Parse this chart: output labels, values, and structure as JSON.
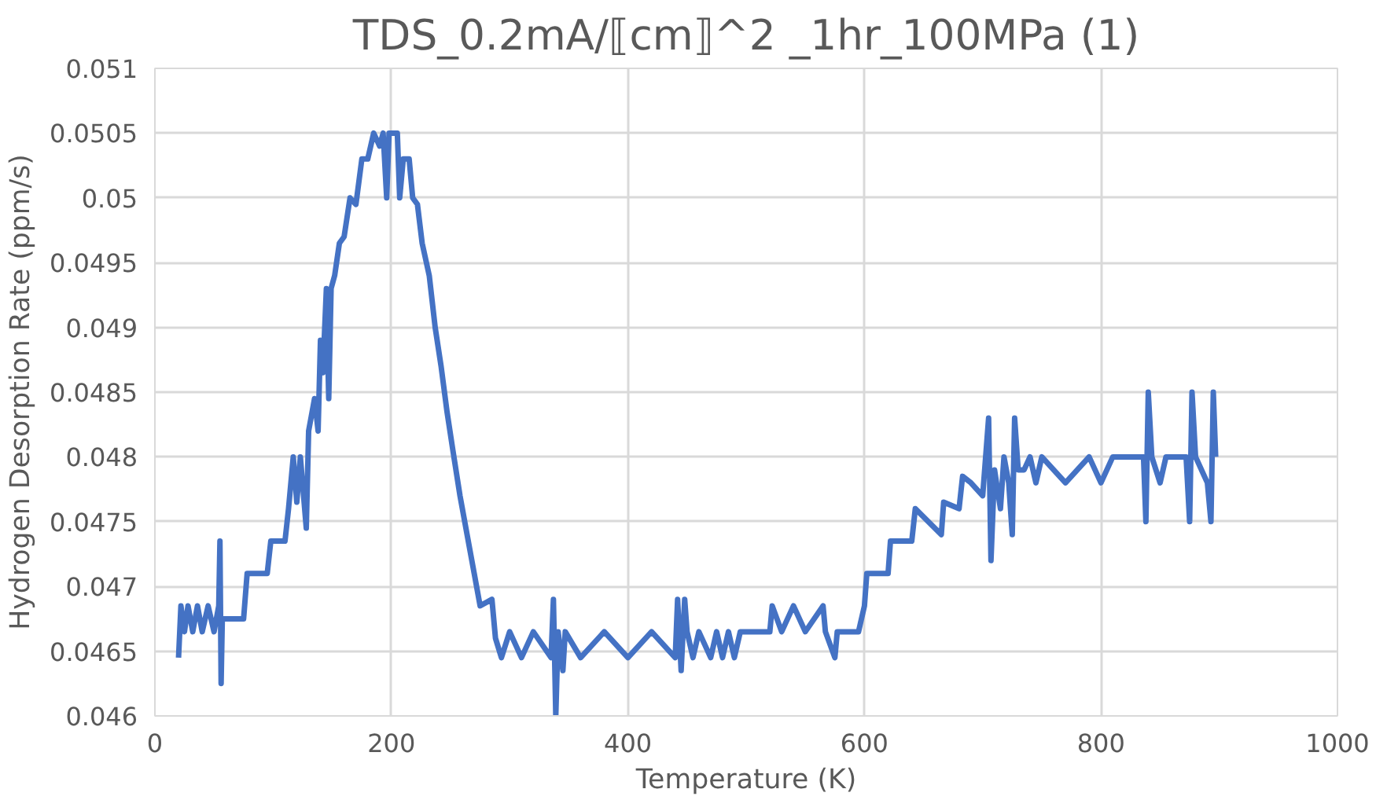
{
  "chart_data": {
    "type": "line",
    "title": "TDS_0.2mA/⟦cm⟧^2 _1hr_100MPa (1)",
    "xlabel": "Temperature (K)",
    "ylabel": "Hydrogen Desorption Rate (ppm/s)",
    "x": [
      20,
      22,
      25,
      28,
      32,
      36,
      40,
      45,
      50,
      54,
      55,
      56,
      57,
      75,
      78,
      95,
      98,
      110,
      113,
      117,
      120,
      123,
      128,
      130,
      135,
      138,
      140,
      142,
      145,
      147,
      149,
      152,
      156,
      160,
      165,
      170,
      175,
      180,
      185,
      190,
      193,
      196,
      198,
      205,
      207,
      210,
      215,
      218,
      222,
      226,
      232,
      237,
      242,
      247,
      252,
      258,
      264,
      270,
      275,
      285,
      288,
      293,
      300,
      310,
      320,
      335,
      337,
      339,
      341,
      345,
      347,
      360,
      380,
      400,
      420,
      440,
      442,
      445,
      448,
      450,
      455,
      460,
      470,
      475,
      480,
      485,
      490,
      495,
      520,
      522,
      530,
      540,
      550,
      565,
      567,
      575,
      577,
      595,
      600,
      602,
      620,
      622,
      640,
      643,
      665,
      667,
      680,
      683,
      690,
      700,
      705,
      707,
      710,
      715,
      718,
      722,
      725,
      727,
      730,
      735,
      740,
      745,
      750,
      770,
      790,
      800,
      810,
      836,
      838,
      840,
      843,
      850,
      855,
      872,
      875,
      877,
      880,
      890,
      893,
      895,
      897
    ],
    "series": [
      {
        "color": "#4472c4",
        "values": [
          0.04645,
          0.04685,
          0.04665,
          0.04685,
          0.04665,
          0.04685,
          0.04665,
          0.04685,
          0.04665,
          0.04685,
          0.04735,
          0.04625,
          0.04675,
          0.04675,
          0.0471,
          0.0471,
          0.04735,
          0.04735,
          0.0476,
          0.048,
          0.04765,
          0.048,
          0.04745,
          0.0482,
          0.04845,
          0.0482,
          0.0489,
          0.04865,
          0.0493,
          0.04845,
          0.0493,
          0.0494,
          0.04965,
          0.0497,
          0.05,
          0.04995,
          0.0503,
          0.0503,
          0.0505,
          0.0504,
          0.0505,
          0.05,
          0.0505,
          0.0505,
          0.05,
          0.0503,
          0.0503,
          0.05,
          0.04995,
          0.04965,
          0.0494,
          0.049,
          0.0487,
          0.04835,
          0.04805,
          0.0477,
          0.0474,
          0.0471,
          0.04685,
          0.0469,
          0.0466,
          0.04645,
          0.04665,
          0.04645,
          0.04665,
          0.04645,
          0.0469,
          0.046,
          0.04665,
          0.04635,
          0.04665,
          0.04645,
          0.04665,
          0.04645,
          0.04665,
          0.04645,
          0.0469,
          0.04635,
          0.0469,
          0.04665,
          0.04645,
          0.04665,
          0.04645,
          0.04665,
          0.04645,
          0.04665,
          0.04645,
          0.04665,
          0.04665,
          0.04685,
          0.04665,
          0.04685,
          0.04665,
          0.04685,
          0.04665,
          0.04645,
          0.04665,
          0.04665,
          0.04685,
          0.0471,
          0.0471,
          0.04735,
          0.04735,
          0.0476,
          0.0474,
          0.04765,
          0.0476,
          0.04785,
          0.0478,
          0.0477,
          0.0483,
          0.0472,
          0.0479,
          0.0476,
          0.048,
          0.0478,
          0.0474,
          0.0483,
          0.0479,
          0.0479,
          0.048,
          0.0478,
          0.048,
          0.0478,
          0.048,
          0.0478,
          0.048,
          0.048,
          0.0475,
          0.0485,
          0.048,
          0.0478,
          0.048,
          0.048,
          0.0475,
          0.0485,
          0.048,
          0.0478,
          0.0475,
          0.0485,
          0.048
        ]
      }
    ],
    "xlim": [
      0,
      1000
    ],
    "xticks": [
      0,
      200,
      400,
      600,
      800,
      1000
    ],
    "ylim": [
      0.046,
      0.051
    ],
    "yticks": [
      {
        "value": 0.046,
        "label": "0.046"
      },
      {
        "value": 0.0465,
        "label": "0.0465"
      },
      {
        "value": 0.047,
        "label": "0.047"
      },
      {
        "value": 0.0475,
        "label": "0.0475"
      },
      {
        "value": 0.048,
        "label": "0.048"
      },
      {
        "value": 0.0485,
        "label": "0.0485"
      },
      {
        "value": 0.049,
        "label": "0.049"
      },
      {
        "value": 0.0495,
        "label": "0.0495"
      },
      {
        "value": 0.05,
        "label": "0.05"
      },
      {
        "value": 0.0505,
        "label": "0.0505"
      },
      {
        "value": 0.051,
        "label": "0.051"
      }
    ],
    "grid": true,
    "marker": "none",
    "line_style": "solid"
  }
}
